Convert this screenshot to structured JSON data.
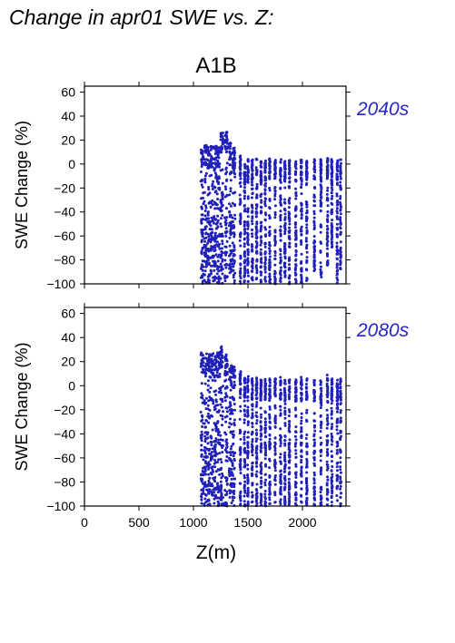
{
  "header": {
    "title": "Change in apr01 SWE vs. Z:"
  },
  "chart_data": [
    {
      "type": "scatter",
      "title": "A1B",
      "period_label": "2040s",
      "ylabel": "SWE Change (%)",
      "xlabel": "",
      "xlim": [
        0,
        2400
      ],
      "ylim": [
        -100,
        65
      ],
      "yticks": [
        60,
        40,
        20,
        0,
        -20,
        -40,
        -60,
        -80,
        -100
      ],
      "xticks": [
        0,
        500,
        1000,
        1500,
        2000
      ],
      "marker_color": "#2020b8",
      "period_color": "#2626c8",
      "columns": [
        {
          "x": 1080,
          "ymin": -100,
          "ymax": 14
        },
        {
          "x": 1110,
          "ymin": -100,
          "ymax": 16
        },
        {
          "x": 1140,
          "ymin": -100,
          "ymax": 14
        },
        {
          "x": 1170,
          "ymin": -98,
          "ymax": 15
        },
        {
          "x": 1200,
          "ymin": -100,
          "ymax": 15
        },
        {
          "x": 1230,
          "ymin": -100,
          "ymax": 14
        },
        {
          "x": 1260,
          "ymin": -100,
          "ymax": 26
        },
        {
          "x": 1300,
          "ymin": -100,
          "ymax": 28
        },
        {
          "x": 1340,
          "ymin": -100,
          "ymax": 20
        },
        {
          "x": 1370,
          "ymin": -100,
          "ymax": 14
        },
        {
          "x": 1430,
          "ymin": -100,
          "ymax": 8
        },
        {
          "x": 1470,
          "ymin": -100,
          "ymax": 2
        },
        {
          "x": 1500,
          "ymin": -100,
          "ymax": 5
        },
        {
          "x": 1540,
          "ymin": -100,
          "ymax": 4
        },
        {
          "x": 1580,
          "ymin": -100,
          "ymax": 5
        },
        {
          "x": 1620,
          "ymin": -100,
          "ymax": 3
        },
        {
          "x": 1660,
          "ymin": -100,
          "ymax": 4
        },
        {
          "x": 1700,
          "ymin": -100,
          "ymax": 5
        },
        {
          "x": 1750,
          "ymin": -100,
          "ymax": 4
        },
        {
          "x": 1800,
          "ymin": -100,
          "ymax": 5
        },
        {
          "x": 1840,
          "ymin": -95,
          "ymax": 4
        },
        {
          "x": 1880,
          "ymin": -100,
          "ymax": 5
        },
        {
          "x": 1940,
          "ymin": -100,
          "ymax": 3
        },
        {
          "x": 1990,
          "ymin": -100,
          "ymax": 4
        },
        {
          "x": 2040,
          "ymin": -98,
          "ymax": 4
        },
        {
          "x": 2110,
          "ymin": -90,
          "ymax": 5
        },
        {
          "x": 2170,
          "ymin": -95,
          "ymax": 4
        },
        {
          "x": 2230,
          "ymin": -85,
          "ymax": 5
        },
        {
          "x": 2270,
          "ymin": -70,
          "ymax": 4
        },
        {
          "x": 2320,
          "ymin": -100,
          "ymax": 4
        },
        {
          "x": 2350,
          "ymin": -90,
          "ymax": 4
        }
      ]
    },
    {
      "type": "scatter",
      "title": "",
      "period_label": "2080s",
      "ylabel": "SWE Change (%)",
      "xlabel": "Z(m)",
      "xlim": [
        0,
        2400
      ],
      "ylim": [
        -100,
        65
      ],
      "yticks": [
        60,
        40,
        20,
        0,
        -20,
        -40,
        -60,
        -80,
        -100
      ],
      "xticks": [
        0,
        500,
        1000,
        1500,
        2000
      ],
      "marker_color": "#2020b8",
      "period_color": "#2626c8",
      "columns": [
        {
          "x": 1080,
          "ymin": -100,
          "ymax": 28
        },
        {
          "x": 1110,
          "ymin": -100,
          "ymax": 27
        },
        {
          "x": 1140,
          "ymin": -100,
          "ymax": 28
        },
        {
          "x": 1170,
          "ymin": -100,
          "ymax": 27
        },
        {
          "x": 1200,
          "ymin": -100,
          "ymax": 26
        },
        {
          "x": 1230,
          "ymin": -100,
          "ymax": 28
        },
        {
          "x": 1260,
          "ymin": -100,
          "ymax": 33
        },
        {
          "x": 1300,
          "ymin": -100,
          "ymax": 26
        },
        {
          "x": 1340,
          "ymin": -100,
          "ymax": 20
        },
        {
          "x": 1370,
          "ymin": -100,
          "ymax": 16
        },
        {
          "x": 1430,
          "ymin": -100,
          "ymax": 12
        },
        {
          "x": 1470,
          "ymin": -100,
          "ymax": 8
        },
        {
          "x": 1500,
          "ymin": -100,
          "ymax": 8
        },
        {
          "x": 1540,
          "ymin": -100,
          "ymax": 6
        },
        {
          "x": 1580,
          "ymin": -100,
          "ymax": 7
        },
        {
          "x": 1620,
          "ymin": -100,
          "ymax": 6
        },
        {
          "x": 1660,
          "ymin": -100,
          "ymax": 6
        },
        {
          "x": 1700,
          "ymin": -100,
          "ymax": 7
        },
        {
          "x": 1750,
          "ymin": -100,
          "ymax": 6
        },
        {
          "x": 1800,
          "ymin": -100,
          "ymax": 7
        },
        {
          "x": 1840,
          "ymin": -100,
          "ymax": 5
        },
        {
          "x": 1880,
          "ymin": -100,
          "ymax": 6
        },
        {
          "x": 1940,
          "ymin": -100,
          "ymax": 5
        },
        {
          "x": 1990,
          "ymin": -100,
          "ymax": 7
        },
        {
          "x": 2040,
          "ymin": -100,
          "ymax": 6
        },
        {
          "x": 2110,
          "ymin": -100,
          "ymax": 5
        },
        {
          "x": 2170,
          "ymin": -100,
          "ymax": 5
        },
        {
          "x": 2230,
          "ymin": -100,
          "ymax": 9
        },
        {
          "x": 2270,
          "ymin": -100,
          "ymax": 7
        },
        {
          "x": 2320,
          "ymin": -100,
          "ymax": 6
        },
        {
          "x": 2350,
          "ymin": -100,
          "ymax": 6
        }
      ]
    }
  ]
}
